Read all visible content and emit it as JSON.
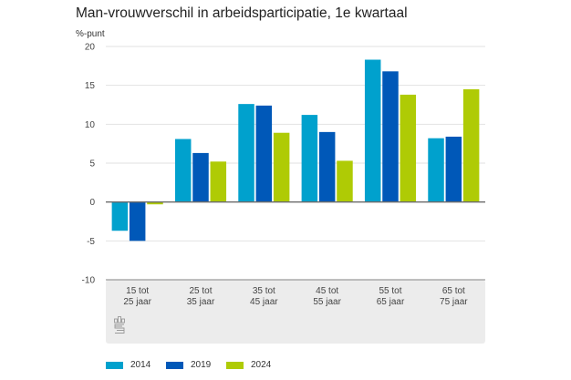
{
  "chart_data": {
    "type": "bar",
    "title": "Man-vrouwverschil in arbeidsparticipatie, 1e kwartaal",
    "ylabel": "%-punt",
    "xlabel": "",
    "ylim": [
      -10,
      20
    ],
    "yticks": [
      20,
      15,
      10,
      5,
      0,
      -5,
      -10
    ],
    "grid": true,
    "legend_position": "bottom-left",
    "categories": [
      [
        "15 tot",
        "25 jaar"
      ],
      [
        "25 tot",
        "35 jaar"
      ],
      [
        "35 tot",
        "45 jaar"
      ],
      [
        "45 tot",
        "55 jaar"
      ],
      [
        "55 tot",
        "65 jaar"
      ],
      [
        "65 tot",
        "75 jaar"
      ]
    ],
    "series": [
      {
        "name": "2014",
        "color": "#00a1cd",
        "values": [
          -3.7,
          8.1,
          12.6,
          11.2,
          18.3,
          8.2
        ]
      },
      {
        "name": "2019",
        "color": "#0058b8",
        "values": [
          -5.0,
          6.3,
          12.4,
          9.0,
          16.8,
          8.4
        ]
      },
      {
        "name": "2024",
        "color": "#afcb05",
        "values": [
          -0.3,
          5.2,
          8.9,
          5.3,
          13.8,
          14.5
        ]
      }
    ]
  },
  "logo": {
    "name": "cbs-logo"
  }
}
